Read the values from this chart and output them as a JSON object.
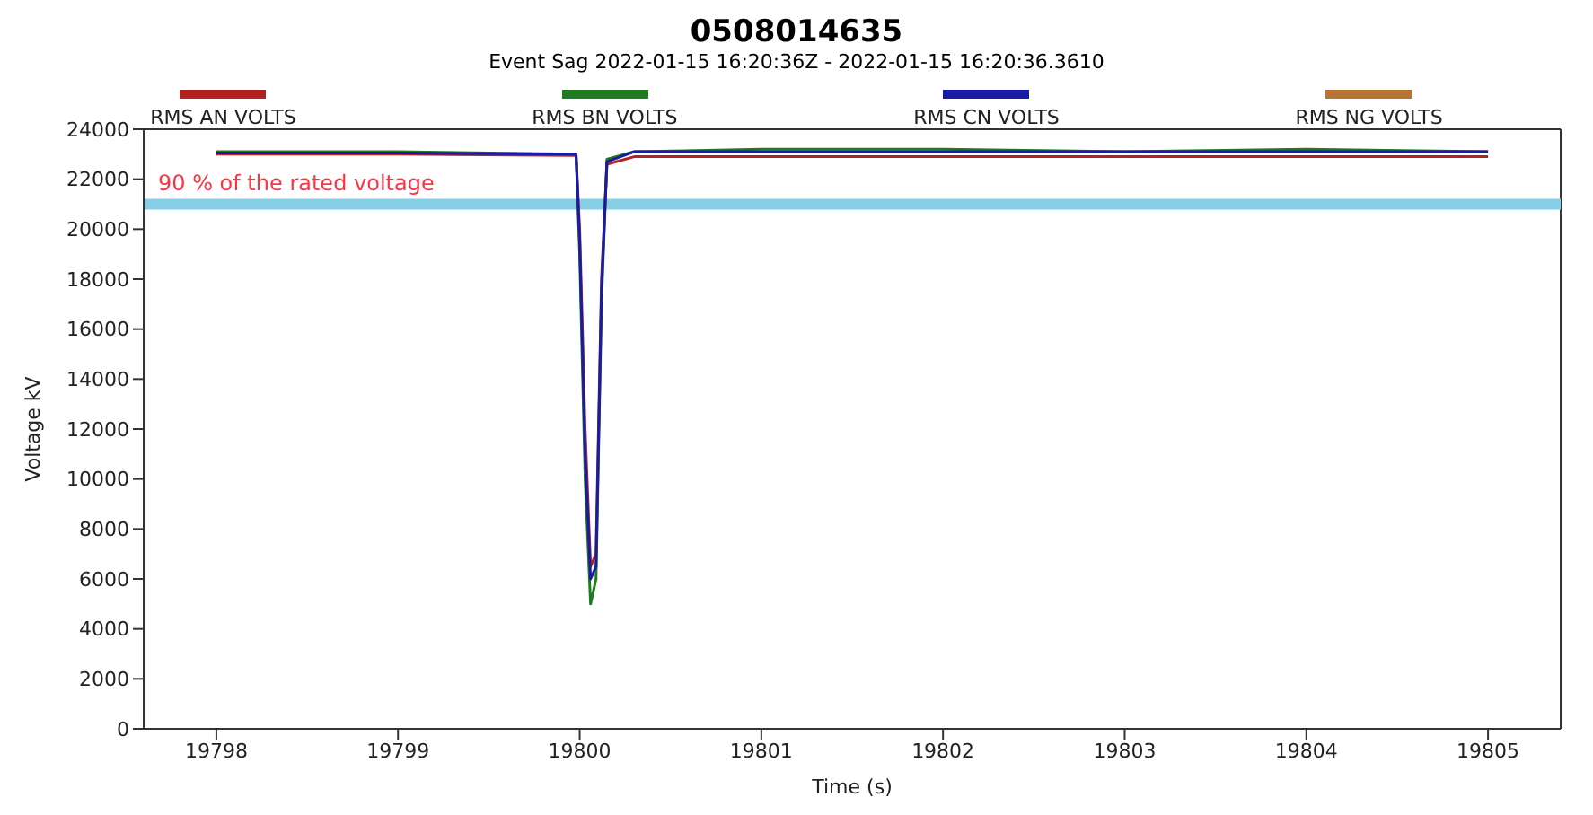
{
  "chart_data": {
    "type": "line",
    "title": "0508014635",
    "subtitle": "Event Sag 2022-01-15 16:20:36Z - 2022-01-15 16:20:36.3610",
    "xlabel": "Time (s)",
    "ylabel": "Voltage kV",
    "x": [
      19798,
      19799,
      19799.98,
      19800.0,
      19800.03,
      19800.06,
      19800.09,
      19800.12,
      19800.15,
      19800.3,
      19801,
      19802,
      19803,
      19804,
      19805
    ],
    "series": [
      {
        "name": "RMS AN VOLTS",
        "color": "#b22222",
        "values": [
          23000,
          23000,
          22950,
          20000,
          12000,
          6500,
          7000,
          18000,
          22600,
          22900,
          22900,
          22900,
          22900,
          22900,
          22900
        ]
      },
      {
        "name": "RMS BN VOLTS",
        "color": "#1e7b1e",
        "values": [
          23100,
          23100,
          23000,
          19000,
          10000,
          5000,
          6000,
          17000,
          22800,
          23100,
          23200,
          23200,
          23100,
          23200,
          23100
        ]
      },
      {
        "name": "RMS CN VOLTS",
        "color": "#1a1aa6",
        "values": [
          23050,
          23050,
          23000,
          19500,
          11000,
          6000,
          6500,
          17500,
          22700,
          23100,
          23100,
          23100,
          23100,
          23100,
          23100
        ]
      },
      {
        "name": "RMS NG VOLTS",
        "color": "#b87333",
        "values": [
          null,
          null,
          null,
          null,
          null,
          null,
          null,
          null,
          null,
          null,
          null,
          null,
          null,
          null,
          null
        ]
      }
    ],
    "xlim": [
      19797.6,
      19805.4
    ],
    "xticks": [
      19798,
      19799,
      19800,
      19801,
      19802,
      19803,
      19804,
      19805
    ],
    "ylim": [
      0,
      24000
    ],
    "yticks": [
      0,
      2000,
      4000,
      6000,
      8000,
      10000,
      12000,
      14000,
      16000,
      18000,
      20000,
      22000,
      24000
    ],
    "ref_lines": [
      {
        "axis": "y",
        "value": 21000,
        "label": "90 % of the rated voltage",
        "color": "#87cfe6"
      }
    ],
    "grid": false,
    "legend": "top",
    "marker": "none",
    "line_style": "solid"
  }
}
